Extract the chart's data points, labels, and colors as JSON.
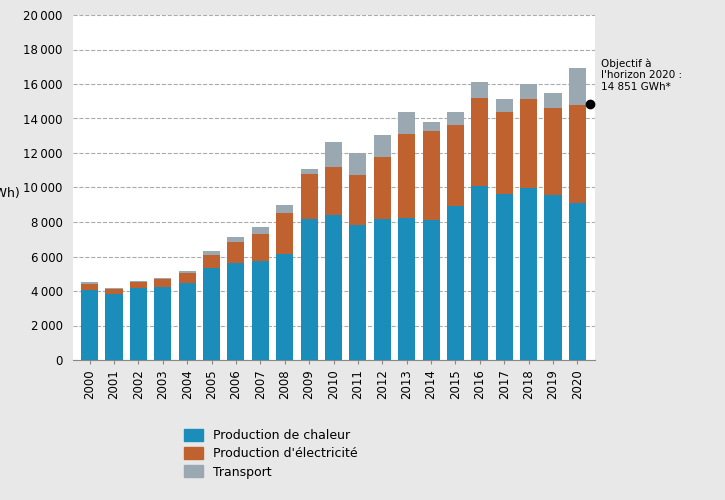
{
  "years": [
    2000,
    2001,
    2002,
    2003,
    2004,
    2005,
    2006,
    2007,
    2008,
    2009,
    2010,
    2011,
    2012,
    2013,
    2014,
    2015,
    2016,
    2017,
    2018,
    2019,
    2020
  ],
  "chaleur": [
    4050,
    3800,
    4150,
    4250,
    4450,
    5350,
    5600,
    5750,
    6150,
    8200,
    8400,
    7850,
    8200,
    8250,
    8100,
    8950,
    10100,
    9600,
    9950,
    9550,
    9100
  ],
  "electricite": [
    380,
    300,
    350,
    450,
    600,
    750,
    1250,
    1550,
    2350,
    2600,
    2800,
    2850,
    3550,
    4850,
    5200,
    4700,
    5100,
    4750,
    5200,
    5050,
    5700
  ],
  "transport": [
    100,
    80,
    80,
    80,
    100,
    200,
    300,
    400,
    500,
    300,
    1450,
    1300,
    1300,
    1300,
    500,
    700,
    900,
    800,
    850,
    900,
    2100
  ],
  "color_chaleur": "#1a8dba",
  "color_electricite": "#c0622f",
  "color_transport": "#9aa8b2",
  "ylabel": "(GWh)",
  "ylim": [
    0,
    20000
  ],
  "yticks": [
    0,
    2000,
    4000,
    6000,
    8000,
    10000,
    12000,
    14000,
    16000,
    18000,
    20000
  ],
  "objective_value": 14851,
  "objective_label": "Objectif à\nl'horizon 2020 :\n14 851 GWh*",
  "legend_chaleur": "Production de chaleur",
  "legend_electricite": "Production d'électricité",
  "legend_transport": "Transport",
  "background_color": "#e8e8e8",
  "plot_bg": "#ffffff"
}
